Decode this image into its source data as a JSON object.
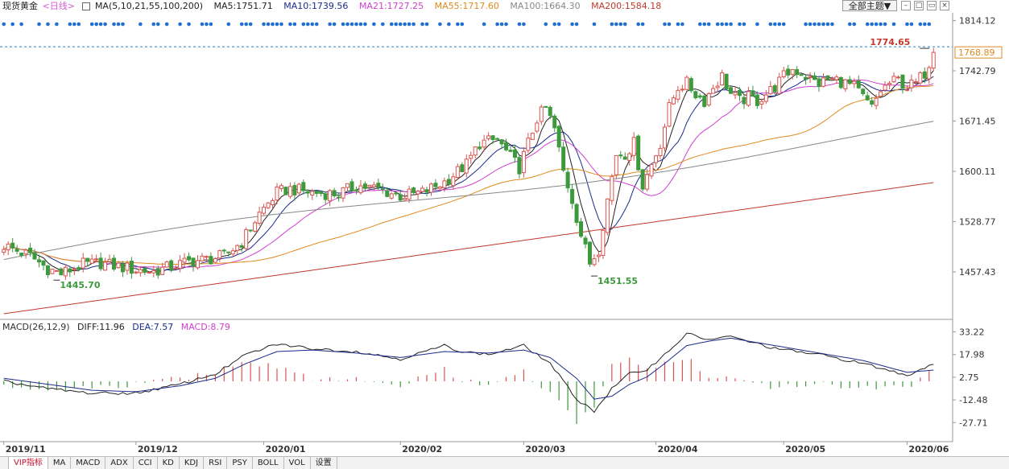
{
  "header": {
    "title": "现货黄金",
    "period": "<日线>",
    "ma_params": "MA(5,10,21,55,100,200)",
    "ma_values": [
      {
        "label": "MA5:1751.71",
        "color": "#222222"
      },
      {
        "label": "MA10:1739.56",
        "color": "#1a2b8c"
      },
      {
        "label": "MA21:1727.25",
        "color": "#d040d0"
      },
      {
        "label": "MA55:1717.60",
        "color": "#e08a1e"
      },
      {
        "label": "MA100:1664.30",
        "color": "#888888"
      },
      {
        "label": "MA200:1584.18",
        "color": "#c0392b"
      }
    ],
    "theme_button": "全部主题▼"
  },
  "macd_header": {
    "params": "MACD(26,12,9)",
    "diff": "DIFF:11.96",
    "dea": "DEA:7.57",
    "macd": "MACD:8.79"
  },
  "footer_tabs": [
    "VIP指标",
    "MA",
    "MACD",
    "ADX",
    "CCI",
    "KD",
    "KDJ",
    "RSI",
    "PSY",
    "BOLL",
    "VOL",
    "设置"
  ],
  "chart_data": [
    {
      "type": "candlestick",
      "y_ticks": [
        "1814.12",
        "1742.79",
        "1671.45",
        "1600.11",
        "1528.77",
        "1457.43"
      ],
      "ylim": [
        1390,
        1825
      ],
      "x_labels": [
        "2019/11",
        "2019/12",
        "2020/01",
        "2020/02",
        "2020/03",
        "2020/04",
        "2020/05",
        "2020/06"
      ],
      "current_price": "1768.89",
      "annotations": [
        "1774.65",
        "1445.70",
        "1451.55"
      ],
      "series": [
        {
          "name": "MA5",
          "color": "#222222"
        },
        {
          "name": "MA10",
          "color": "#1a2b8c"
        },
        {
          "name": "MA21",
          "color": "#d040d0"
        },
        {
          "name": "MA55",
          "color": "#e08a1e"
        },
        {
          "name": "MA100",
          "color": "#888888"
        },
        {
          "name": "MA200",
          "color": "#c0392b"
        }
      ],
      "anchors": [
        [
          0,
          1495
        ],
        [
          6,
          1480
        ],
        [
          10,
          1462
        ],
        [
          13,
          1455
        ],
        [
          18,
          1468
        ],
        [
          22,
          1470
        ],
        [
          26,
          1465
        ],
        [
          30,
          1460
        ],
        [
          34,
          1458
        ],
        [
          38,
          1465
        ],
        [
          42,
          1472
        ],
        [
          46,
          1475
        ],
        [
          50,
          1480
        ],
        [
          54,
          1500
        ],
        [
          58,
          1540
        ],
        [
          62,
          1570
        ],
        [
          65,
          1575
        ],
        [
          70,
          1570
        ],
        [
          76,
          1568
        ],
        [
          80,
          1580
        ],
        [
          85,
          1575
        ],
        [
          90,
          1565
        ],
        [
          95,
          1570
        ],
        [
          100,
          1585
        ],
        [
          105,
          1610
        ],
        [
          108,
          1640
        ],
        [
          112,
          1645
        ],
        [
          115,
          1620
        ],
        [
          117,
          1605
        ],
        [
          119,
          1640
        ],
        [
          121,
          1675
        ],
        [
          123,
          1690
        ],
        [
          125,
          1660
        ],
        [
          127,
          1600
        ],
        [
          129,
          1560
        ],
        [
          131,
          1510
        ],
        [
          133,
          1470
        ],
        [
          135,
          1490
        ],
        [
          137,
          1560
        ],
        [
          139,
          1625
        ],
        [
          141,
          1625
        ],
        [
          143,
          1640
        ],
        [
          145,
          1580
        ],
        [
          147,
          1610
        ],
        [
          149,
          1640
        ],
        [
          151,
          1690
        ],
        [
          153,
          1720
        ],
        [
          155,
          1725
        ],
        [
          157,
          1710
        ],
        [
          159,
          1700
        ],
        [
          161,
          1720
        ],
        [
          163,
          1735
        ],
        [
          165,
          1710
        ],
        [
          167,
          1700
        ],
        [
          169,
          1705
        ],
        [
          171,
          1700
        ],
        [
          173,
          1710
        ],
        [
          175,
          1720
        ],
        [
          177,
          1735
        ],
        [
          179,
          1745
        ],
        [
          181,
          1740
        ],
        [
          183,
          1730
        ],
        [
          185,
          1725
        ],
        [
          187,
          1730
        ],
        [
          189,
          1730
        ],
        [
          191,
          1725
        ],
        [
          193,
          1720
        ],
        [
          195,
          1705
        ],
        [
          197,
          1690
        ],
        [
          199,
          1715
        ],
        [
          201,
          1725
        ],
        [
          203,
          1730
        ],
        [
          205,
          1720
        ],
        [
          207,
          1725
        ],
        [
          209,
          1740
        ],
        [
          211,
          1768
        ]
      ]
    },
    {
      "type": "macd",
      "y_ticks": [
        "33.22",
        "17.98",
        "2.75",
        "-12.48",
        "-27.71"
      ],
      "ylim": [
        -40,
        40
      ],
      "diff_anchors": [
        [
          0,
          0
        ],
        [
          10,
          -5
        ],
        [
          20,
          -8
        ],
        [
          30,
          -8
        ],
        [
          40,
          -2
        ],
        [
          48,
          5
        ],
        [
          55,
          18
        ],
        [
          62,
          25
        ],
        [
          70,
          22
        ],
        [
          80,
          20
        ],
        [
          90,
          15
        ],
        [
          100,
          24
        ],
        [
          104,
          20
        ],
        [
          110,
          18
        ],
        [
          118,
          24
        ],
        [
          124,
          12
        ],
        [
          130,
          -12
        ],
        [
          134,
          -20
        ],
        [
          138,
          -5
        ],
        [
          142,
          5
        ],
        [
          146,
          8
        ],
        [
          150,
          18
        ],
        [
          155,
          32
        ],
        [
          160,
          28
        ],
        [
          165,
          30
        ],
        [
          175,
          22
        ],
        [
          185,
          18
        ],
        [
          195,
          12
        ],
        [
          205,
          4
        ],
        [
          211,
          12
        ]
      ],
      "dea_anchors": [
        [
          0,
          2
        ],
        [
          10,
          -2
        ],
        [
          20,
          -6
        ],
        [
          30,
          -7
        ],
        [
          40,
          -3
        ],
        [
          48,
          2
        ],
        [
          55,
          12
        ],
        [
          62,
          20
        ],
        [
          70,
          21
        ],
        [
          80,
          19
        ],
        [
          90,
          16
        ],
        [
          100,
          20
        ],
        [
          110,
          19
        ],
        [
          118,
          21
        ],
        [
          124,
          16
        ],
        [
          130,
          2
        ],
        [
          134,
          -12
        ],
        [
          138,
          -10
        ],
        [
          142,
          -2
        ],
        [
          146,
          3
        ],
        [
          150,
          12
        ],
        [
          155,
          24
        ],
        [
          160,
          27
        ],
        [
          165,
          29
        ],
        [
          175,
          24
        ],
        [
          185,
          19
        ],
        [
          195,
          14
        ],
        [
          205,
          6
        ],
        [
          211,
          7.57
        ]
      ]
    }
  ]
}
